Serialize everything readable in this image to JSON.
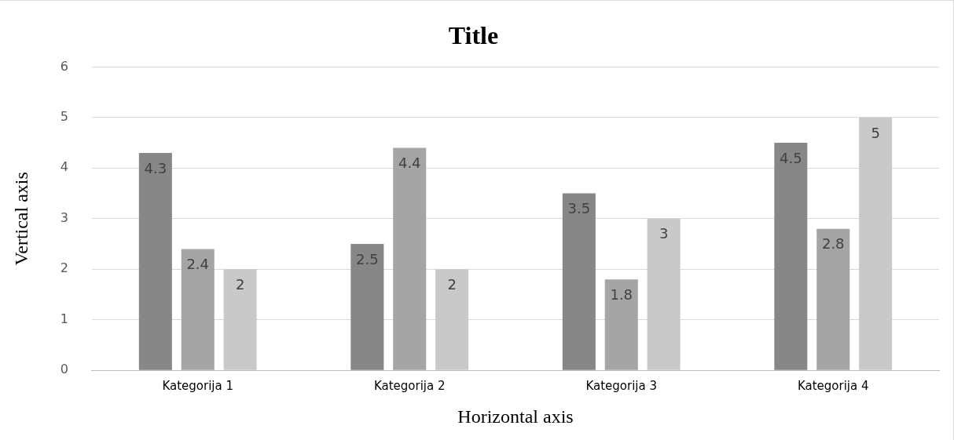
{
  "chart_data": {
    "type": "bar",
    "title": "Title",
    "xlabel": "Horizontal axis",
    "ylabel": "Vertical axis",
    "categories": [
      "Kategorija 1",
      "Kategorija 2",
      "Kategorija 3",
      "Kategorija 4"
    ],
    "series": [
      {
        "color": "#878787",
        "values": [
          4.3,
          2.5,
          3.5,
          4.5
        ]
      },
      {
        "color": "#a5a5a5",
        "values": [
          2.4,
          4.4,
          1.8,
          2.8
        ]
      },
      {
        "color": "#c9c9c9",
        "values": [
          2,
          2,
          3,
          5
        ]
      }
    ],
    "ylim": [
      0,
      6
    ],
    "yticks": [
      0,
      1,
      2,
      3,
      4,
      5,
      6
    ],
    "grid": "y",
    "legend": false,
    "data_labels": true
  }
}
